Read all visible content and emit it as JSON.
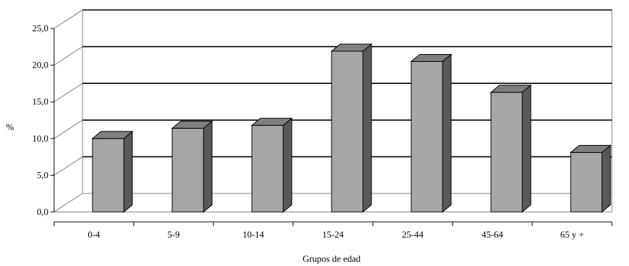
{
  "chart_data": {
    "type": "bar",
    "style": "3d-column",
    "categories": [
      "0-4",
      "5-9",
      "10-14",
      "15-24",
      "25-44",
      "45-64",
      "65 y +"
    ],
    "values": [
      10.0,
      11.4,
      11.8,
      21.9,
      20.5,
      16.3,
      8.1
    ],
    "xlabel": "Grupos de edad",
    "ylabel": "%",
    "ylim": [
      0,
      25
    ],
    "yticks": [
      "0,0",
      "5,0",
      "10,0",
      "15,0",
      "20,0",
      "25,0"
    ],
    "grid": true,
    "legend": "none",
    "colors": {
      "bar_front": "#a6a6a6",
      "bar_side": "#595959",
      "bar_top": "#7f7f7f",
      "wall": "#ffffff",
      "gridline": "#000000",
      "outline": "#000000"
    }
  }
}
